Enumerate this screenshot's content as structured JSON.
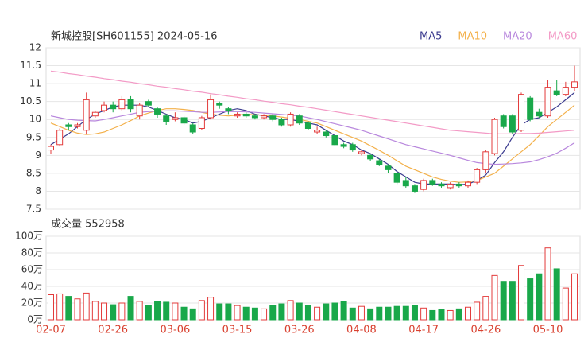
{
  "chart_data": [
    {
      "type": "candlestick",
      "title": "新城控股[SH601155] 2024-05-16",
      "ylim": [
        7.5,
        12
      ],
      "yticks": [
        12,
        11.5,
        11,
        10.5,
        10,
        9.5,
        9,
        8.5,
        8,
        7.5
      ],
      "grid": true,
      "up_color": "#e33b3b",
      "down_color": "#19a84a",
      "open": [
        9.15,
        9.3,
        9.85,
        9.8,
        9.7,
        10.1,
        10.25,
        10.4,
        10.3,
        10.55,
        10.1,
        10.5,
        10.3,
        10.1,
        10.0,
        10.05,
        9.85,
        9.75,
        10.05,
        10.45,
        10.3,
        10.1,
        10.15,
        10.1,
        10.05,
        10.1,
        10.0,
        9.85,
        10.1,
        9.9,
        9.65,
        9.65,
        9.55,
        9.3,
        9.3,
        9.05,
        9.0,
        8.85,
        8.7,
        8.5,
        8.3,
        8.15,
        8.05,
        8.3,
        8.2,
        8.1,
        8.2,
        8.15,
        8.25,
        8.6,
        9.05,
        10.1,
        10.1,
        9.7,
        10.6,
        10.2,
        10.1,
        10.8,
        10.7,
        10.9
      ],
      "high": [
        9.3,
        9.75,
        9.9,
        9.9,
        10.75,
        10.25,
        10.5,
        10.5,
        10.65,
        10.65,
        10.45,
        10.55,
        10.35,
        10.15,
        10.2,
        10.1,
        9.9,
        10.1,
        10.7,
        10.5,
        10.35,
        10.2,
        10.2,
        10.15,
        10.15,
        10.15,
        10.05,
        10.2,
        10.15,
        9.95,
        9.8,
        9.7,
        9.6,
        9.35,
        9.35,
        9.15,
        9.05,
        8.9,
        8.75,
        8.55,
        8.4,
        8.2,
        8.35,
        8.35,
        8.25,
        8.25,
        8.25,
        8.3,
        8.65,
        9.15,
        10.05,
        10.15,
        10.15,
        10.75,
        10.65,
        10.3,
        11.1,
        11.1,
        11.05,
        11.5
      ],
      "low": [
        9.05,
        9.25,
        9.7,
        9.75,
        9.6,
        10.05,
        10.2,
        10.2,
        10.25,
        10.2,
        10.0,
        10.35,
        10.05,
        9.85,
        9.95,
        9.85,
        9.6,
        9.7,
        10.0,
        10.3,
        10.15,
        10.05,
        10.05,
        10.0,
        10.0,
        9.95,
        9.8,
        9.8,
        9.85,
        9.7,
        9.6,
        9.5,
        9.25,
        9.2,
        9.1,
        9.0,
        8.85,
        8.7,
        8.5,
        8.2,
        8.1,
        7.95,
        8.0,
        8.15,
        8.1,
        8.05,
        8.1,
        8.1,
        8.2,
        8.5,
        9.0,
        9.75,
        9.6,
        9.65,
        9.95,
        10.05,
        10.05,
        10.65,
        10.65,
        10.8
      ],
      "close": [
        9.25,
        9.7,
        9.8,
        9.85,
        10.55,
        10.2,
        10.4,
        10.3,
        10.55,
        10.3,
        10.4,
        10.4,
        10.15,
        9.95,
        10.05,
        9.9,
        9.65,
        10.05,
        10.55,
        10.4,
        10.25,
        10.15,
        10.1,
        10.05,
        10.1,
        10.0,
        9.85,
        10.15,
        9.9,
        9.75,
        9.7,
        9.55,
        9.3,
        9.25,
        9.15,
        9.1,
        8.9,
        8.75,
        8.6,
        8.25,
        8.15,
        8.0,
        8.3,
        8.2,
        8.15,
        8.2,
        8.15,
        8.25,
        8.6,
        9.1,
        10.0,
        9.8,
        9.65,
        10.7,
        10.0,
        10.1,
        10.9,
        10.7,
        10.9,
        11.05
      ],
      "series": [
        {
          "name": "MA5",
          "color": "#3b3b8f",
          "values": [
            9.3,
            9.45,
            9.6,
            9.8,
            10.0,
            10.15,
            10.25,
            10.35,
            10.4,
            10.4,
            10.4,
            10.35,
            10.25,
            10.15,
            10.05,
            10.0,
            9.9,
            9.95,
            10.05,
            10.15,
            10.25,
            10.3,
            10.25,
            10.15,
            10.1,
            10.05,
            10.0,
            10.0,
            9.95,
            9.9,
            9.85,
            9.7,
            9.55,
            9.4,
            9.3,
            9.15,
            9.05,
            8.9,
            8.75,
            8.55,
            8.4,
            8.25,
            8.2,
            8.2,
            8.2,
            8.2,
            8.18,
            8.2,
            8.3,
            8.45,
            8.8,
            9.1,
            9.5,
            9.85,
            10.0,
            10.05,
            10.2,
            10.35,
            10.55,
            10.75
          ]
        },
        {
          "name": "MA10",
          "color": "#f3b04a",
          "values": [
            9.9,
            9.8,
            9.7,
            9.62,
            9.58,
            9.6,
            9.65,
            9.75,
            9.85,
            9.97,
            10.1,
            10.18,
            10.25,
            10.3,
            10.3,
            10.28,
            10.25,
            10.2,
            10.15,
            10.12,
            10.1,
            10.12,
            10.15,
            10.13,
            10.12,
            10.1,
            10.07,
            10.03,
            10.0,
            9.95,
            9.9,
            9.8,
            9.7,
            9.6,
            9.5,
            9.4,
            9.27,
            9.14,
            9.0,
            8.85,
            8.7,
            8.6,
            8.5,
            8.4,
            8.33,
            8.28,
            8.25,
            8.26,
            8.3,
            8.4,
            8.5,
            8.7,
            8.9,
            9.1,
            9.3,
            9.55,
            9.8,
            10.0,
            10.2,
            10.4
          ]
        },
        {
          "name": "MA20",
          "color": "#b887dd",
          "values": [
            10.1,
            10.05,
            10.0,
            9.98,
            9.97,
            9.96,
            10.0,
            10.05,
            10.1,
            10.15,
            10.2,
            10.22,
            10.23,
            10.24,
            10.24,
            10.23,
            10.22,
            10.2,
            10.2,
            10.21,
            10.22,
            10.22,
            10.21,
            10.2,
            10.18,
            10.16,
            10.14,
            10.12,
            10.1,
            10.05,
            10.0,
            9.94,
            9.88,
            9.82,
            9.76,
            9.7,
            9.62,
            9.54,
            9.46,
            9.38,
            9.3,
            9.24,
            9.18,
            9.12,
            9.06,
            9.0,
            8.93,
            8.86,
            8.8,
            8.77,
            8.75,
            8.76,
            8.77,
            8.79,
            8.82,
            8.88,
            8.96,
            9.06,
            9.2,
            9.35
          ]
        },
        {
          "name": "MA60",
          "color": "#f39ac6",
          "values": [
            11.35,
            11.32,
            11.28,
            11.25,
            11.21,
            11.18,
            11.14,
            11.11,
            11.07,
            11.04,
            11.0,
            10.97,
            10.93,
            10.9,
            10.86,
            10.83,
            10.79,
            10.76,
            10.72,
            10.69,
            10.65,
            10.62,
            10.58,
            10.55,
            10.51,
            10.48,
            10.44,
            10.41,
            10.37,
            10.34,
            10.3,
            10.26,
            10.22,
            10.18,
            10.14,
            10.1,
            10.06,
            10.02,
            9.98,
            9.94,
            9.9,
            9.86,
            9.82,
            9.78,
            9.74,
            9.7,
            9.68,
            9.66,
            9.64,
            9.62,
            9.6,
            9.6,
            9.6,
            9.61,
            9.61,
            9.62,
            9.64,
            9.66,
            9.68,
            9.7
          ]
        }
      ]
    },
    {
      "type": "bar",
      "title": "成交量 552958",
      "categories": [
        "02-07",
        null,
        null,
        null,
        null,
        null,
        null,
        "02-26",
        null,
        null,
        null,
        null,
        null,
        null,
        "03-06",
        null,
        null,
        null,
        null,
        null,
        null,
        "03-15",
        null,
        null,
        null,
        null,
        null,
        null,
        "03-26",
        null,
        null,
        null,
        null,
        null,
        null,
        "04-08",
        null,
        null,
        null,
        null,
        null,
        null,
        "04-17",
        null,
        null,
        null,
        null,
        null,
        null,
        "04-26",
        null,
        null,
        null,
        null,
        null,
        null,
        "05-10",
        null,
        null,
        null
      ],
      "values": [
        30,
        31,
        28,
        25,
        32,
        22,
        20,
        18,
        20,
        28,
        22,
        17,
        22,
        21,
        20,
        15,
        13,
        23,
        27,
        19,
        19,
        17,
        15,
        14,
        13,
        17,
        19,
        23,
        20,
        17,
        15,
        19,
        20,
        22,
        14,
        16,
        13,
        15,
        15,
        16,
        16,
        17,
        14,
        11,
        12,
        11,
        13,
        15,
        21,
        28,
        53,
        46,
        46,
        65,
        49,
        55,
        86,
        61,
        38,
        55
      ],
      "ylim": [
        0,
        100
      ],
      "yticks": [
        {
          "value": 100,
          "label": "100万"
        },
        {
          "value": 80,
          "label": "80万"
        },
        {
          "value": 60,
          "label": "60万"
        },
        {
          "value": 40,
          "label": "40万"
        },
        {
          "value": 20,
          "label": "20万"
        },
        {
          "value": 0,
          "label": "0万"
        }
      ],
      "grid": true
    }
  ]
}
